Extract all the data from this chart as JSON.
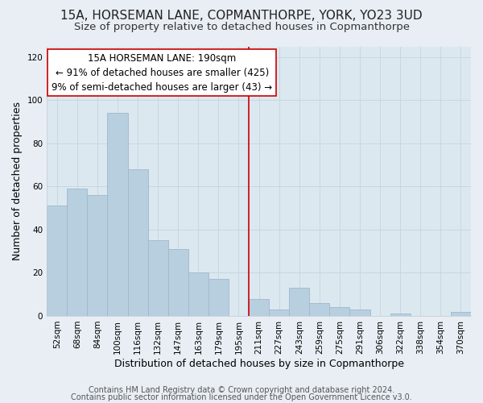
{
  "title": "15A, HORSEMAN LANE, COPMANTHORPE, YORK, YO23 3UD",
  "subtitle": "Size of property relative to detached houses in Copmanthorpe",
  "xlabel": "Distribution of detached houses by size in Copmanthorpe",
  "ylabel": "Number of detached properties",
  "bar_color": "#b8cfe0",
  "bar_edge_color": "#a0b8cc",
  "bin_labels": [
    "52sqm",
    "68sqm",
    "84sqm",
    "100sqm",
    "116sqm",
    "132sqm",
    "147sqm",
    "163sqm",
    "179sqm",
    "195sqm",
    "211sqm",
    "227sqm",
    "243sqm",
    "259sqm",
    "275sqm",
    "291sqm",
    "306sqm",
    "322sqm",
    "338sqm",
    "354sqm",
    "370sqm"
  ],
  "bar_heights": [
    51,
    59,
    56,
    94,
    68,
    35,
    31,
    20,
    17,
    0,
    8,
    3,
    13,
    6,
    4,
    3,
    0,
    1,
    0,
    0,
    2
  ],
  "vline_x": 9.5,
  "vline_color": "#cc0000",
  "annotation_title": "15A HORSEMAN LANE: 190sqm",
  "annotation_line1": "← 91% of detached houses are smaller (425)",
  "annotation_line2": "9% of semi-detached houses are larger (43) →",
  "annotation_box_color": "#ffffff",
  "annotation_box_edge_color": "#cc0000",
  "ylim": [
    0,
    125
  ],
  "yticks": [
    0,
    20,
    40,
    60,
    80,
    100,
    120
  ],
  "footer1": "Contains HM Land Registry data © Crown copyright and database right 2024.",
  "footer2": "Contains public sector information licensed under the Open Government Licence v3.0.",
  "background_color": "#e8eef4",
  "plot_bg_color": "#dce8f0",
  "title_fontsize": 11,
  "subtitle_fontsize": 9.5,
  "axis_label_fontsize": 9,
  "tick_fontsize": 7.5,
  "annotation_fontsize": 8.5,
  "footer_fontsize": 7
}
